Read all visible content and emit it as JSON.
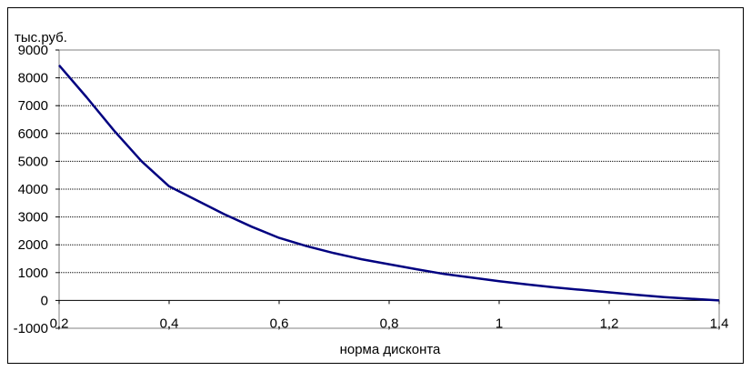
{
  "chart_data": {
    "type": "line",
    "title": "",
    "xlabel": "норма дисконта",
    "ylabel": "тыс.руб.",
    "xlim": [
      0.2,
      1.4
    ],
    "ylim": [
      -1000,
      9000
    ],
    "x_ticks": [
      "0,2",
      "0,4",
      "0,6",
      "0,8",
      "1",
      "1,2",
      "1,4"
    ],
    "x_tick_values": [
      0.2,
      0.4,
      0.6,
      0.8,
      1.0,
      1.2,
      1.4
    ],
    "y_ticks": [
      "-1000",
      "0",
      "1000",
      "2000",
      "3000",
      "4000",
      "5000",
      "6000",
      "7000",
      "8000",
      "9000"
    ],
    "y_tick_values": [
      -1000,
      0,
      1000,
      2000,
      3000,
      4000,
      5000,
      6000,
      7000,
      8000,
      9000
    ],
    "grid": "horizontal",
    "legend": "none",
    "series": [
      {
        "color": "#000080",
        "x": [
          0.2,
          0.25,
          0.3,
          0.35,
          0.4,
          0.45,
          0.5,
          0.55,
          0.6,
          0.65,
          0.7,
          0.75,
          0.8,
          0.85,
          0.9,
          0.95,
          1.0,
          1.05,
          1.1,
          1.15,
          1.2,
          1.25,
          1.3,
          1.35,
          1.4
        ],
        "y": [
          8450,
          7300,
          6100,
          5000,
          4100,
          3600,
          3100,
          2650,
          2250,
          1950,
          1700,
          1480,
          1300,
          1120,
          950,
          820,
          690,
          580,
          470,
          380,
          290,
          200,
          120,
          60,
          0
        ]
      }
    ]
  }
}
